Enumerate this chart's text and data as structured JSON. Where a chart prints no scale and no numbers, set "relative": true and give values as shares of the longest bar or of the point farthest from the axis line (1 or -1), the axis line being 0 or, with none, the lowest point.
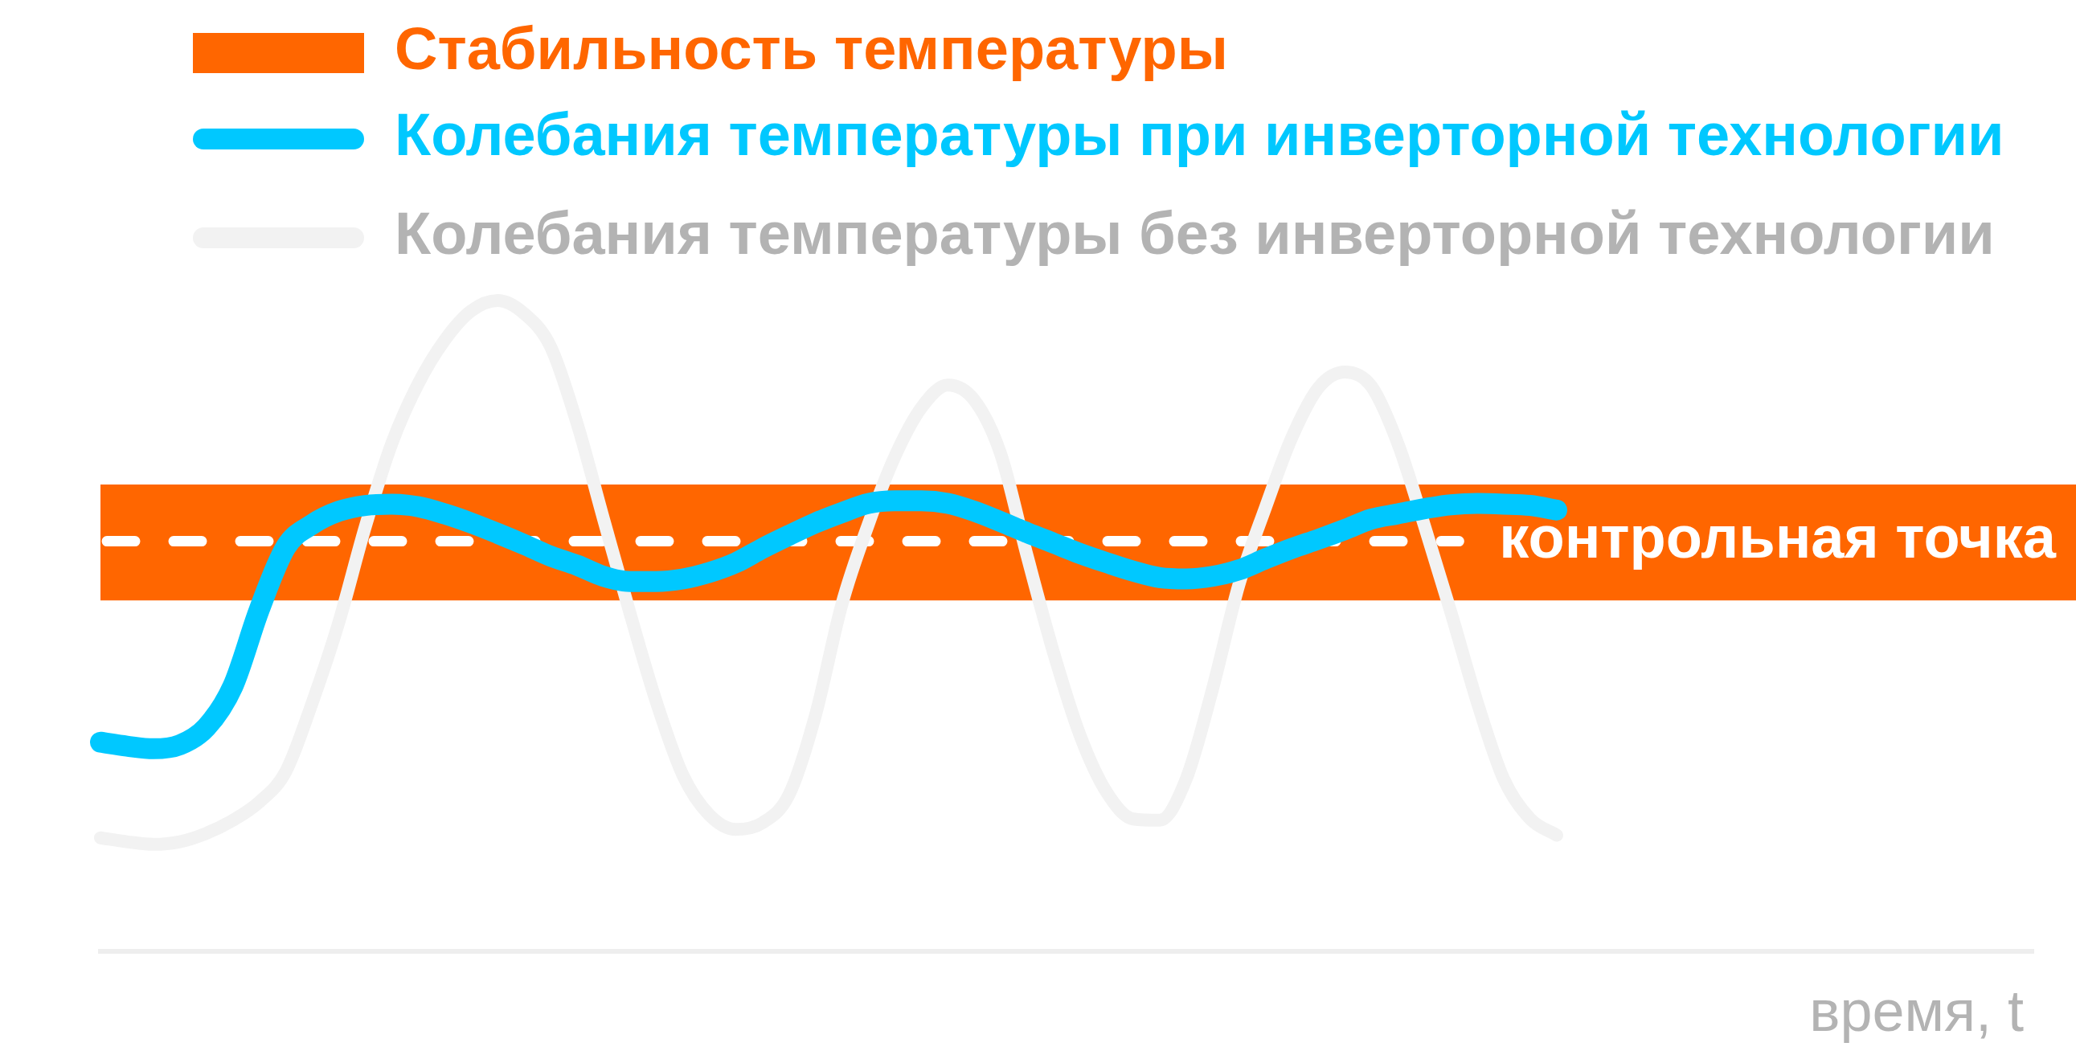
{
  "chart_data": {
    "type": "line",
    "relative": true,
    "legend": "top left",
    "xlabel": "время, t",
    "categories": [
      null,
      null,
      null,
      null,
      null,
      null,
      null,
      null,
      null,
      null,
      null,
      null,
      null,
      null,
      null,
      null,
      null,
      null,
      null,
      null,
      null,
      null,
      null,
      null,
      null,
      null,
      null,
      null,
      null,
      null,
      null,
      null,
      null,
      null,
      null,
      null,
      null,
      null,
      null,
      null,
      null,
      null,
      null,
      null,
      null,
      null,
      null,
      null,
      null,
      null,
      null,
      null,
      null,
      null,
      null,
      null,
      null,
      null,
      null,
      null,
      null,
      null,
      null,
      null,
      null,
      null,
      null,
      null,
      null,
      null,
      null,
      null,
      null,
      null
    ],
    "series": [
      {
        "name": "Колебания температуры при инверторной технологии",
        "color": "#00c8ff",
        "values": [
          0.321,
          0.315,
          0.311,
          0.317,
          0.344,
          0.407,
          0.525,
          0.621,
          0.656,
          0.676,
          0.685,
          0.687,
          0.683,
          0.672,
          0.658,
          0.642,
          0.625,
          0.607,
          0.593,
          0.576,
          0.568,
          0.568,
          0.572,
          0.582,
          0.597,
          0.619,
          0.639,
          0.658,
          0.674,
          0.688,
          0.692,
          0.692,
          0.688,
          0.676,
          0.66,
          0.643,
          0.627,
          0.611,
          0.597,
          0.584,
          0.574,
          0.572,
          0.576,
          0.586,
          0.603,
          0.619,
          0.633,
          0.648,
          0.664,
          0.672,
          0.68,
          0.686,
          0.688,
          0.687,
          0.685,
          0.678,
          null,
          null,
          null,
          null,
          null,
          null,
          null,
          null,
          null,
          null,
          null,
          null,
          null,
          null,
          null,
          null,
          null,
          null
        ]
      },
      {
        "name": "Колебания температуры без инверторной технологии",
        "color": "#f2f2f2",
        "values": [
          0.174,
          0.168,
          0.164,
          0.168,
          0.181,
          0.201,
          0.229,
          0.276,
          0.382,
          0.505,
          0.652,
          0.78,
          0.872,
          0.939,
          0.984,
          1,
          0.98,
          0.929,
          0.811,
          0.664,
          0.519,
          0.382,
          0.27,
          0.209,
          0.187,
          0.197,
          0.24,
          0.362,
          0.533,
          0.656,
          0.76,
          0.835,
          0.87,
          0.847,
          0.764,
          0.607,
          0.458,
          0.331,
          0.244,
          0.203,
          0.201,
          0.264,
          0.403,
          0.564,
          0.682,
          0.79,
          0.866,
          0.89,
          0.868,
          0.78,
          0.654,
          0.521,
          0.382,
          0.264,
          0.203,
          0.178,
          null,
          null,
          null,
          null,
          null,
          null,
          null,
          null,
          null,
          null,
          null,
          null,
          null,
          null,
          null,
          null,
          null,
          null
        ]
      }
    ],
    "bands": [
      {
        "axis": "y",
        "from": 0.539,
        "to": 0.717,
        "label": "Стабильность температуры",
        "color": "#ff6600"
      }
    ],
    "ref_lines": [
      {
        "axis": "y",
        "value": 0.63,
        "label": "контрольная точка",
        "color": "#ffffff",
        "line_style": "dashed"
      }
    ]
  }
}
